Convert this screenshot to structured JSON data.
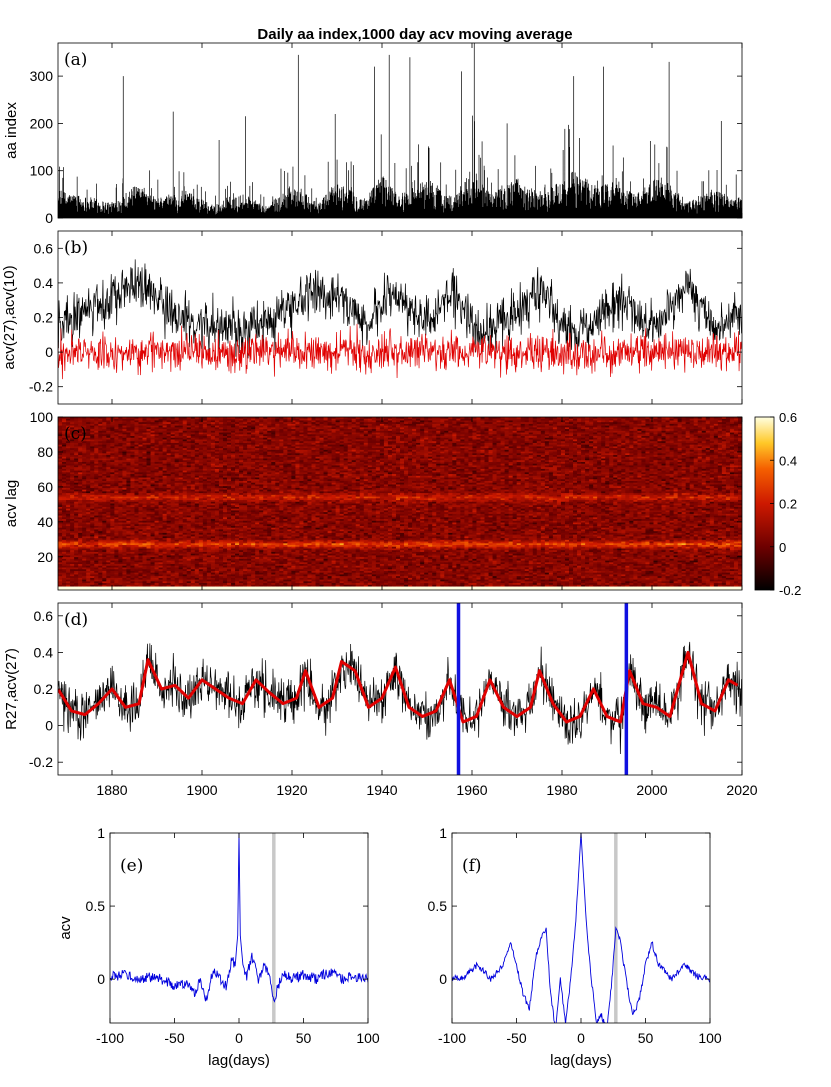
{
  "title": "Daily aa index,1000 day acv moving average",
  "colors": {
    "black_series": "#000000",
    "red_series": "#e00000",
    "blue_series": "#0000dd",
    "marker_line": "#1010e0",
    "gray_line": "#c8c8c8"
  },
  "chart_data": [
    {
      "id": "a",
      "type": "line",
      "panel_label": "(a)",
      "ylabel": "aa index",
      "xlim": [
        1868,
        2020
      ],
      "ylim": [
        0,
        370
      ],
      "yticks": [
        0,
        100,
        200,
        300
      ],
      "ytick_labels": [
        "0",
        "100",
        "200",
        "300"
      ],
      "series": [
        {
          "name": "aa index",
          "color": "#000000",
          "notable_peaks": [
            [
              1882.5,
              300
            ],
            [
              1893.6,
              225
            ],
            [
              1903.8,
              165
            ],
            [
              1909.7,
              215
            ],
            [
              1921.4,
              345
            ],
            [
              1929.6,
              220
            ],
            [
              1938.3,
              320
            ],
            [
              1941.6,
              345
            ],
            [
              1946.2,
              340
            ],
            [
              1957.7,
              310
            ],
            [
              1960.5,
              370
            ],
            [
              1967.8,
              200
            ],
            [
              1982.6,
              300
            ],
            [
              1989.2,
              320
            ],
            [
              2003.8,
              330
            ],
            [
              2015.4,
              205
            ]
          ]
        }
      ]
    },
    {
      "id": "b",
      "type": "line",
      "panel_label": "(b)",
      "ylabel": "acv(27),acv(10)",
      "xlim": [
        1868,
        2020
      ],
      "ylim": [
        -0.3,
        0.7
      ],
      "yticks": [
        -0.2,
        0,
        0.2,
        0.4,
        0.6
      ],
      "ytick_labels": [
        "-0.2",
        "0",
        "0.2",
        "0.4",
        "0.6"
      ],
      "series": [
        {
          "name": "acv(27)",
          "color": "#000000",
          "range": [
            -0.3,
            0.67
          ]
        },
        {
          "name": "acv(10)",
          "color": "#e00000",
          "range": [
            -0.3,
            0.35
          ]
        }
      ]
    },
    {
      "id": "c",
      "type": "heatmap",
      "panel_label": "(c)",
      "ylabel": "acv lag",
      "xlim": [
        1868,
        2020
      ],
      "ylim": [
        1,
        100
      ],
      "yticks": [
        20,
        40,
        60,
        80,
        100
      ],
      "ytick_labels": [
        "20",
        "40",
        "60",
        "80",
        "100"
      ],
      "colorbar": {
        "range": [
          -0.2,
          0.6
        ],
        "ticks": [
          -0.2,
          0,
          0.2,
          0.4,
          0.6
        ],
        "tick_labels": [
          "-0.2",
          "0",
          "0.2",
          "0.4",
          "0.6"
        ]
      },
      "bright_bands_at_lag": [
        27,
        54
      ]
    },
    {
      "id": "d",
      "type": "line",
      "panel_label": "(d)",
      "ylabel": "R27,acv(27)",
      "xlim": [
        1868,
        2020
      ],
      "ylim": [
        -0.27,
        0.67
      ],
      "yticks": [
        -0.2,
        0,
        0.2,
        0.4,
        0.6
      ],
      "ytick_labels": [
        "-0.2",
        "0",
        "0.2",
        "0.4",
        "0.6"
      ],
      "xticks": [
        1880,
        1900,
        1920,
        1940,
        1960,
        1980,
        2000,
        2020
      ],
      "xtick_labels": [
        "1880",
        "1900",
        "1920",
        "1940",
        "1960",
        "1980",
        "2000",
        "2020"
      ],
      "vertical_markers": [
        1957,
        1994.3
      ],
      "series": [
        {
          "name": "acv(27)",
          "color": "#000000"
        },
        {
          "name": "R27",
          "color": "#e00000",
          "x": [
            1868,
            1871,
            1874,
            1877,
            1880,
            1883,
            1886,
            1888,
            1891,
            1894,
            1897,
            1900,
            1903,
            1906,
            1909,
            1912,
            1915,
            1918,
            1921,
            1923,
            1926,
            1929,
            1931,
            1934,
            1937,
            1940,
            1943,
            1946,
            1949,
            1952,
            1955,
            1958,
            1961,
            1964,
            1967,
            1970,
            1973,
            1975,
            1978,
            1981,
            1984,
            1987,
            1990,
            1993,
            1995,
            1998,
            2001,
            2004,
            2008,
            2011,
            2014,
            2017,
            2019
          ],
          "y": [
            0.2,
            0.08,
            0.06,
            0.12,
            0.2,
            0.1,
            0.12,
            0.36,
            0.2,
            0.22,
            0.15,
            0.25,
            0.2,
            0.15,
            0.12,
            0.25,
            0.18,
            0.12,
            0.15,
            0.3,
            0.1,
            0.15,
            0.35,
            0.3,
            0.1,
            0.15,
            0.32,
            0.1,
            0.05,
            0.08,
            0.25,
            0.02,
            0.05,
            0.25,
            0.1,
            0.05,
            0.1,
            0.3,
            0.12,
            0.02,
            0.05,
            0.2,
            0.05,
            0.02,
            0.3,
            0.12,
            0.1,
            0.05,
            0.4,
            0.12,
            0.08,
            0.25,
            0.22
          ]
        }
      ]
    },
    {
      "id": "e",
      "type": "line",
      "panel_label": "(e)",
      "ylabel": "acv",
      "xlabel": "lag(days)",
      "xlim": [
        -100,
        100
      ],
      "ylim": [
        -0.3,
        1
      ],
      "xticks": [
        -100,
        -50,
        0,
        50,
        100
      ],
      "xtick_labels": [
        "-100",
        "-50",
        "0",
        "50",
        "100"
      ],
      "yticks": [
        0,
        0.5,
        1
      ],
      "ytick_labels": [
        "0",
        "0.5",
        "1"
      ],
      "vertical_marker": 27,
      "series": [
        {
          "name": "acv",
          "color": "#0000dd",
          "x": [
            -100,
            -90,
            -80,
            -70,
            -60,
            -50,
            -40,
            -35,
            -30,
            -25,
            -20,
            -15,
            -10,
            -6,
            -3,
            -1,
            0,
            1,
            3,
            6,
            10,
            15,
            20,
            25,
            27,
            30,
            35,
            40,
            50,
            60,
            70,
            80,
            90,
            100
          ],
          "y": [
            0.02,
            0.03,
            0.0,
            0.01,
            0.0,
            -0.05,
            -0.02,
            -0.1,
            0.0,
            -0.15,
            0.07,
            0.0,
            -0.05,
            0.13,
            0.1,
            0.3,
            1.0,
            0.3,
            0.1,
            0.02,
            0.15,
            0.0,
            0.1,
            -0.02,
            -0.15,
            -0.05,
            0.05,
            0.0,
            0.03,
            0.0,
            0.05,
            0.0,
            0.02,
            0.0
          ]
        }
      ]
    },
    {
      "id": "f",
      "type": "line",
      "panel_label": "(f)",
      "xlabel": "lag(days)",
      "xlim": [
        -100,
        100
      ],
      "ylim": [
        -0.3,
        1
      ],
      "xticks": [
        -100,
        -50,
        0,
        50,
        100
      ],
      "xtick_labels": [
        "-100",
        "-50",
        "0",
        "50",
        "100"
      ],
      "yticks": [
        0,
        0.5,
        1
      ],
      "ytick_labels": [
        "0",
        "0.5",
        "1"
      ],
      "vertical_marker": 27,
      "series": [
        {
          "name": "acv",
          "color": "#0000dd",
          "x": [
            -100,
            -90,
            -80,
            -70,
            -60,
            -55,
            -50,
            -45,
            -40,
            -35,
            -30,
            -27,
            -24,
            -20,
            -16,
            -12,
            -8,
            -4,
            -2,
            0,
            2,
            4,
            8,
            12,
            16,
            20,
            24,
            27,
            30,
            35,
            40,
            45,
            50,
            55,
            60,
            70,
            80,
            90,
            100
          ],
          "y": [
            0.0,
            0.02,
            0.1,
            0.0,
            0.1,
            0.25,
            0.1,
            -0.1,
            -0.2,
            0.15,
            0.3,
            0.35,
            -0.05,
            -0.35,
            0.0,
            -0.3,
            0.0,
            0.4,
            0.7,
            1.0,
            0.7,
            0.4,
            0.0,
            -0.3,
            -0.25,
            -0.35,
            0.0,
            0.35,
            0.28,
            0.0,
            -0.25,
            -0.15,
            0.1,
            0.25,
            0.1,
            0.0,
            0.1,
            0.02,
            0.0
          ]
        }
      ]
    }
  ]
}
